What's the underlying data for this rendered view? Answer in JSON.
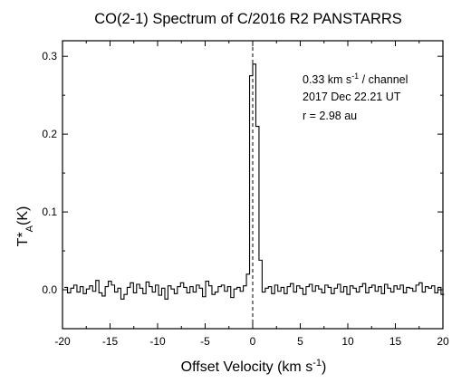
{
  "chart_data": {
    "type": "line",
    "title": "CO(2-1) Spectrum of C/2016 R2 PANSTARRS",
    "xlabel": {
      "main": "Offset Velocity (km s",
      "sup": "-1",
      "tail": ")"
    },
    "ylabel": {
      "main": "T*",
      "sub": "A",
      "tail": "(K)"
    },
    "xlim": [
      -20,
      20
    ],
    "ylim": [
      -0.05,
      0.32
    ],
    "x_ticks": [
      -20,
      -15,
      -10,
      -5,
      0,
      5,
      10,
      15,
      20
    ],
    "x_tick_labels": [
      "-20",
      "-15",
      "-10",
      "-5",
      "0",
      "5",
      "10",
      "15",
      "20"
    ],
    "y_ticks": [
      0.0,
      0.1,
      0.2,
      0.3
    ],
    "y_tick_labels": [
      "0.0",
      "0.1",
      "0.2",
      "0.3"
    ],
    "reference_line_x": 0,
    "annotations": {
      "line1_a": "0.33 km s",
      "line1_sup": "-1",
      "line1_b": " / channel",
      "line2": "2017 Dec 22.21 UT",
      "line3": "r = 2.98 au"
    },
    "grid": false,
    "legend": "none",
    "series": [
      {
        "color": "#000000",
        "x_start": -19.8,
        "channel_width": 0.33,
        "values": [
          0.003,
          -0.004,
          0.002,
          0.006,
          -0.003,
          0.004,
          -0.005,
          0.001,
          0.005,
          -0.002,
          0.012,
          -0.004,
          -0.008,
          0.004,
          0.011,
          0.006,
          -0.003,
          0.002,
          -0.012,
          -0.006,
          0.003,
          0.009,
          -0.004,
          0.007,
          0.002,
          -0.005,
          0.01,
          0.004,
          -0.003,
          0.006,
          -0.007,
          0.002,
          -0.012,
          0.005,
          0.001,
          -0.005,
          0.004,
          0.009,
          0.003,
          -0.004,
          0.004,
          -0.003,
          0.006,
          0.002,
          -0.009,
          0.011,
          0.005,
          -0.006,
          -0.003,
          0.004,
          0.006,
          -0.002,
          0.004,
          -0.01,
          0.001,
          0.003,
          -0.002,
          0.005,
          0.02,
          0.275,
          0.29,
          0.21,
          0.038,
          -0.003,
          0.002,
          0.004,
          -0.005,
          0.006,
          -0.002,
          0.003,
          -0.005,
          0.004,
          0.008,
          -0.003,
          0.005,
          0.002,
          -0.006,
          0.004,
          0.007,
          -0.002,
          0.005,
          0.001,
          -0.004,
          0.006,
          0.003,
          -0.005,
          0.002,
          0.007,
          -0.003,
          0.004,
          -0.006,
          0.005,
          0.002,
          -0.003,
          0.004,
          0.008,
          -0.004,
          0.003,
          0.006,
          -0.002,
          0.004,
          -0.005,
          0.007,
          0.002,
          -0.003,
          0.005,
          0.001,
          0.006,
          -0.004,
          0.003,
          0.002,
          -0.002,
          0.006,
          0.009,
          -0.003,
          0.004,
          0.002,
          0.005,
          -0.004,
          0.003,
          -0.006
        ]
      }
    ]
  }
}
